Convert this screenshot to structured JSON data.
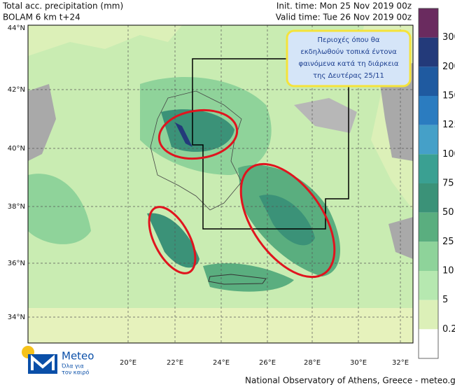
{
  "header": {
    "title": "Total acc. precipitation (mm)",
    "model": "BOLAM 6 km t+24",
    "init_time": "Init. time: Mon 25 Nov 2019 00z",
    "valid_time": "Valid time: Tue 26 Nov 2019 00z"
  },
  "annotation": {
    "lines": [
      "Περιοχές όπου θα",
      "εκδηλωθούν τοπικά έντονα",
      "φαινόμενα κατά τη διάρκεια",
      "της Δευτέρας 25/11"
    ]
  },
  "axes": {
    "lat_labels": [
      "44°N",
      "42°N",
      "40°N",
      "38°N",
      "36°N",
      "34°N"
    ],
    "lon_labels": [
      "20°E",
      "22°E",
      "24°E",
      "26°E",
      "28°E",
      "30°E",
      "32°E"
    ]
  },
  "colorbar": {
    "labels": [
      "300",
      "200",
      "150",
      "125",
      "100",
      "75",
      "50",
      "25",
      "10",
      "5",
      "0.2"
    ]
  },
  "logo": {
    "name": "Meteo",
    "tagline": [
      "Όλα για",
      "τον καιρό"
    ]
  },
  "footer": "National Observatory of Athens, Greece - meteo.gr"
}
